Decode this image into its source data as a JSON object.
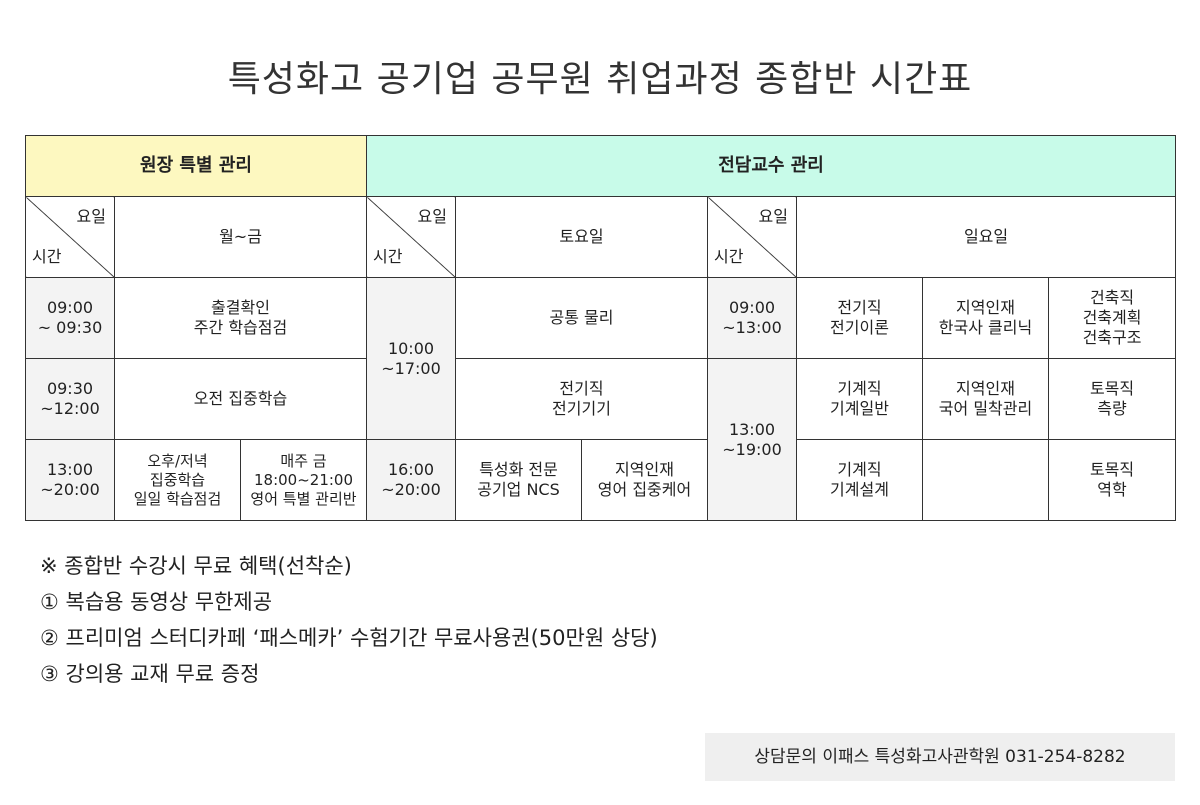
{
  "title": "특성화고 공기업 공무원 취업과정 종합반 시간표",
  "table": {
    "head_left": "원장 특별 관리",
    "head_right": "전담교수 관리",
    "diag_top": "요일",
    "diag_bottom": "시간",
    "day_weekday": "월~금",
    "day_sat": "토요일",
    "day_sun": "일요일",
    "wk": {
      "t1": "09:00\n~ 09:30",
      "c1": "출결확인\n주간 학습점검",
      "t2": "09:30\n~12:00",
      "c2": "오전 집중학습",
      "t3": "13:00\n~20:00",
      "c3a": "오후/저녁\n집중학습\n일일 학습점검",
      "c3b": "매주 금\n18:00~21:00\n영어 특별 관리반"
    },
    "sat": {
      "t1": "10:00\n~17:00",
      "c1": "공통 물리",
      "c2": "전기직\n전기기기",
      "t2": "16:00\n~20:00",
      "c3a": "특성화 전문\n공기업 NCS",
      "c3b": "지역인재\n영어 집중케어"
    },
    "sun": {
      "t1": "09:00\n~13:00",
      "r1a": "전기직\n전기이론",
      "r1b": "지역인재\n한국사 클리닉",
      "r1c": "건축직\n건축계획\n건축구조",
      "t2": "13:00\n~19:00",
      "r2a": "기계직\n기계일반",
      "r2b": "지역인재\n국어 밀착관리",
      "r2c": "토목직\n측량",
      "r3a": "기계직\n기계설계",
      "r3b": "",
      "r3c": "토목직\n역학"
    }
  },
  "notes": [
    "※ 종합반 수강시 무료 혜택(선착순)",
    "① 복습용 동영상 무한제공",
    "② 프리미엄 스터디카페 ‘패스메카’ 수험기간 무료사용권(50만원 상당)",
    "③ 강의용 교재 무료 증정"
  ],
  "contact": "상담문의 이패스 특성화고사관학원 031-254-8282"
}
